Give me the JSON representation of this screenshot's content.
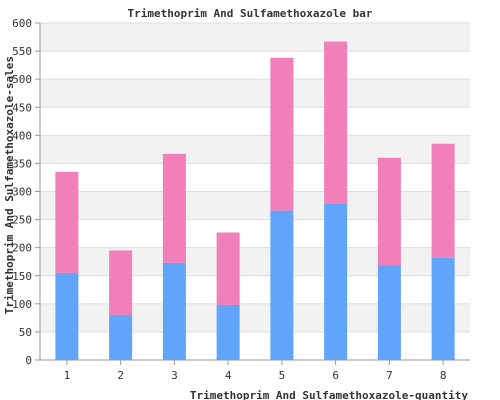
{
  "chart_data": {
    "type": "bar",
    "stacked": true,
    "title": "Trimethoprim And Sulfamethoxazole bar",
    "xlabel": "Trimethoprim And Sulfamethoxazole-quantity",
    "ylabel": "Trimethoprim And Sulfamethoxazole-sales",
    "categories": [
      "1",
      "2",
      "3",
      "4",
      "5",
      "6",
      "7",
      "8"
    ],
    "ylim": [
      0,
      600
    ],
    "yticks": [
      0,
      50,
      100,
      150,
      200,
      250,
      300,
      350,
      400,
      450,
      500,
      550,
      600
    ],
    "grid": true,
    "series": [
      {
        "values": [
          155,
          80,
          173,
          98,
          266,
          279,
          169,
          182
        ],
        "color": "#60a5fa"
      },
      {
        "values": [
          180,
          115,
          194,
          129,
          272,
          288,
          191,
          203
        ],
        "color": "#f07fba"
      }
    ],
    "colors": {
      "band_light": "#ffffff",
      "band_dark": "#f2f2f2",
      "grid": "#dddddd",
      "axis": "#999999"
    }
  }
}
